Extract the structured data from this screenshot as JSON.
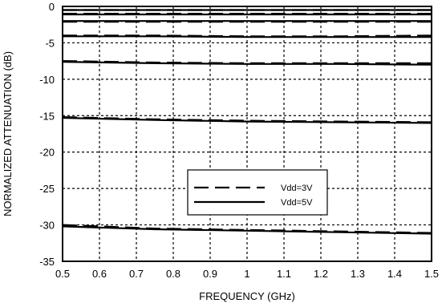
{
  "chart_data": {
    "type": "line",
    "title": "",
    "xlabel": "FREQUENCY (GHz)",
    "ylabel": "NORMALIZED ATTENUATION (dB)",
    "xlim": [
      0.5,
      1.5
    ],
    "ylim": [
      -35,
      0
    ],
    "xticks": [
      "0.5",
      "0.6",
      "0.7",
      "0.8",
      "0.9",
      "1",
      "1.1",
      "1.2",
      "1.3",
      "1.4",
      "1.5"
    ],
    "yticks": [
      "0",
      "-5",
      "-10",
      "-15",
      "-20",
      "-25",
      "-30",
      "-35"
    ],
    "grid": true,
    "legend": {
      "placement": "lower-center",
      "entries": [
        {
          "label": "Vdd=3V",
          "style": "dashed"
        },
        {
          "label": "Vdd=5V",
          "style": "solid"
        }
      ]
    },
    "series": [
      {
        "name": "Vdd=3V",
        "style": "dashed",
        "x": [
          0.5,
          0.75,
          1.0,
          1.25,
          1.5
        ],
        "y": [
          -0.5,
          -0.5,
          -0.5,
          -0.5,
          -0.5
        ]
      },
      {
        "name": "Vdd=3V",
        "style": "dashed",
        "x": [
          0.5,
          0.75,
          1.0,
          1.25,
          1.5
        ],
        "y": [
          -1.0,
          -1.0,
          -1.0,
          -1.0,
          -1.0
        ]
      },
      {
        "name": "Vdd=3V",
        "style": "dashed",
        "x": [
          0.5,
          0.75,
          1.0,
          1.25,
          1.5
        ],
        "y": [
          -2.1,
          -2.1,
          -2.1,
          -2.1,
          -2.1
        ]
      },
      {
        "name": "Vdd=3V",
        "style": "dashed",
        "x": [
          0.5,
          0.75,
          1.0,
          1.25,
          1.5
        ],
        "y": [
          -4.0,
          -4.0,
          -4.1,
          -4.1,
          -4.0
        ]
      },
      {
        "name": "Vdd=3V",
        "style": "dashed",
        "x": [
          0.5,
          0.75,
          1.0,
          1.25,
          1.5
        ],
        "y": [
          -7.5,
          -7.7,
          -7.8,
          -7.8,
          -7.8
        ]
      },
      {
        "name": "Vdd=3V",
        "style": "dashed",
        "x": [
          0.5,
          0.75,
          1.0,
          1.25,
          1.5
        ],
        "y": [
          -15.2,
          -15.5,
          -15.7,
          -15.8,
          -15.9
        ]
      },
      {
        "name": "Vdd=3V",
        "style": "dashed",
        "x": [
          0.5,
          0.75,
          1.0,
          1.25,
          1.5
        ],
        "y": [
          -30.0,
          -30.5,
          -30.7,
          -30.9,
          -31.1
        ]
      },
      {
        "name": "Vdd=5V",
        "style": "solid",
        "x": [
          0.5,
          0.75,
          1.0,
          1.25,
          1.5
        ],
        "y": [
          -0.5,
          -0.5,
          -0.5,
          -0.5,
          -0.5
        ]
      },
      {
        "name": "Vdd=5V",
        "style": "solid",
        "x": [
          0.5,
          0.75,
          1.0,
          1.25,
          1.5
        ],
        "y": [
          -1.1,
          -1.1,
          -1.1,
          -1.1,
          -1.1
        ]
      },
      {
        "name": "Vdd=5V",
        "style": "solid",
        "x": [
          0.5,
          0.75,
          1.0,
          1.25,
          1.5
        ],
        "y": [
          -2.0,
          -2.0,
          -2.0,
          -2.0,
          -2.0
        ]
      },
      {
        "name": "Vdd=5V",
        "style": "solid",
        "x": [
          0.5,
          0.75,
          1.0,
          1.25,
          1.5
        ],
        "y": [
          -4.1,
          -4.1,
          -4.2,
          -4.2,
          -4.2
        ]
      },
      {
        "name": "Vdd=5V",
        "style": "solid",
        "x": [
          0.5,
          0.75,
          1.0,
          1.25,
          1.5
        ],
        "y": [
          -7.6,
          -7.8,
          -7.9,
          -7.9,
          -8.0
        ]
      },
      {
        "name": "Vdd=5V",
        "style": "solid",
        "x": [
          0.5,
          0.75,
          1.0,
          1.25,
          1.5
        ],
        "y": [
          -15.3,
          -15.6,
          -15.8,
          -15.9,
          -16.0
        ]
      },
      {
        "name": "Vdd=5V",
        "style": "solid",
        "x": [
          0.5,
          0.75,
          1.0,
          1.25,
          1.5
        ],
        "y": [
          -30.2,
          -30.6,
          -30.8,
          -31.0,
          -31.2
        ]
      }
    ]
  }
}
